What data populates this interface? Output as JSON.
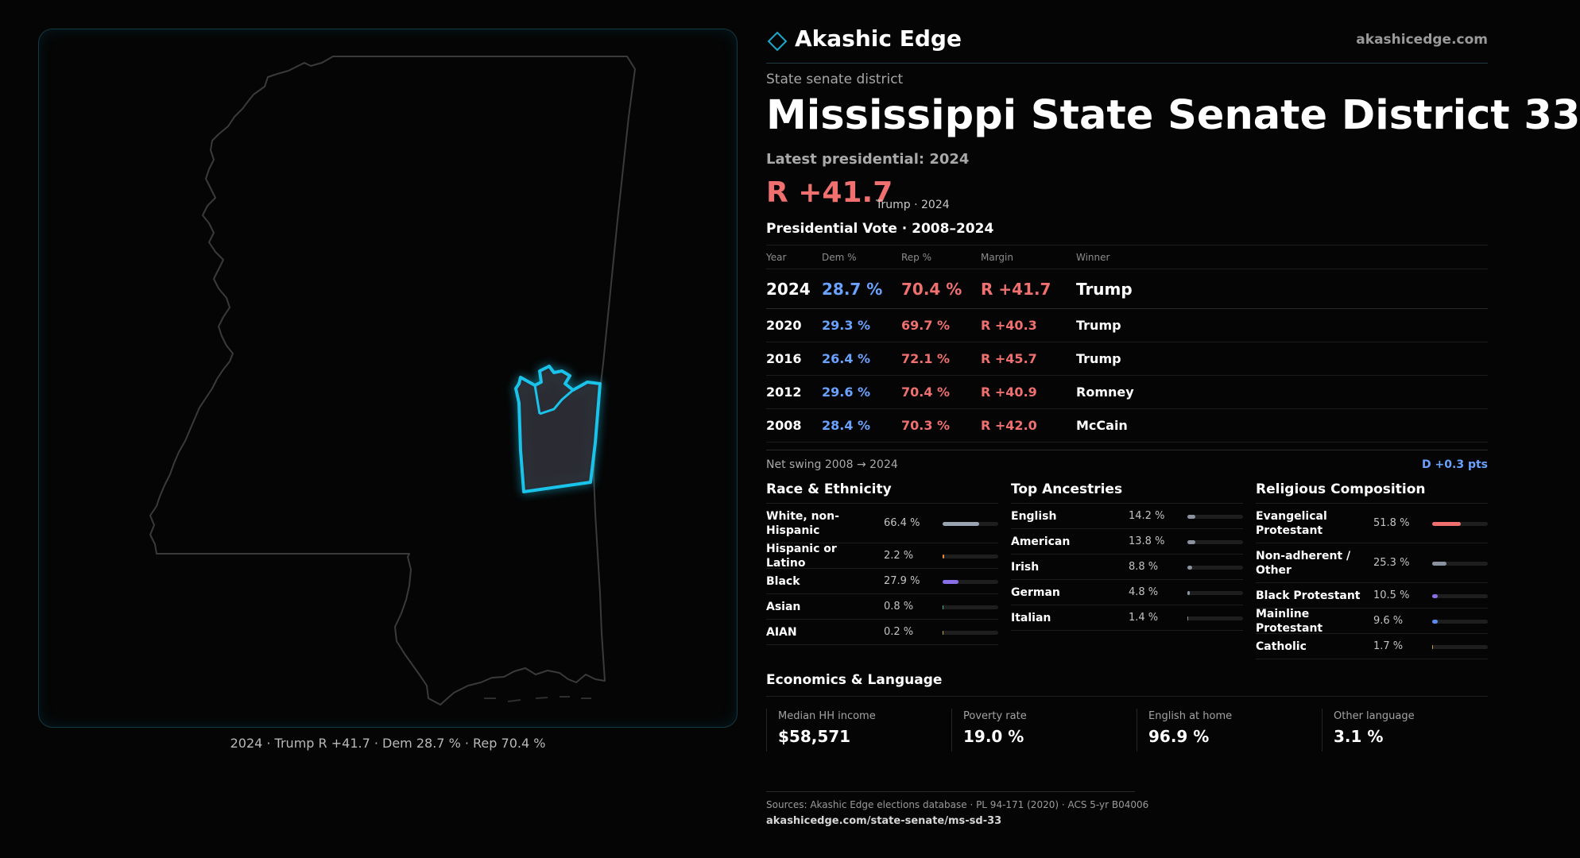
{
  "header": {
    "brand": "Akashic Edge",
    "site": "akashicedge.com"
  },
  "kicker": "State senate district",
  "title": "Mississippi State Senate District 33",
  "latest_label": "Latest presidential: 2024",
  "headline": {
    "margin": "R +41.7",
    "sub": "Trump · 2024"
  },
  "map": {
    "caption": "2024 · Trump R +41.7 · Dem 28.7 % · Rep 70.4 %",
    "highlight_color": "#19c3ea",
    "state_outline_color": "#3a3a3a"
  },
  "presidential": {
    "heading": "Presidential Vote · 2008–2024",
    "columns": [
      "Year",
      "Dem %",
      "Rep %",
      "Margin",
      "Winner"
    ],
    "rows": [
      {
        "year": "2024",
        "dem": "28.7 %",
        "rep": "70.4 %",
        "margin": "R +41.7",
        "winner": "Trump"
      },
      {
        "year": "2020",
        "dem": "29.3 %",
        "rep": "69.7 %",
        "margin": "R +40.3",
        "winner": "Trump"
      },
      {
        "year": "2016",
        "dem": "26.4 %",
        "rep": "72.1 %",
        "margin": "R +45.7",
        "winner": "Trump"
      },
      {
        "year": "2012",
        "dem": "29.6 %",
        "rep": "70.4 %",
        "margin": "R +40.9",
        "winner": "Romney"
      },
      {
        "year": "2008",
        "dem": "28.4 %",
        "rep": "70.3 %",
        "margin": "R +42.0",
        "winner": "McCain"
      }
    ],
    "swing_label": "Net swing 2008 → 2024",
    "swing_value": "D +0.3 pts"
  },
  "race": {
    "heading": "Race & Ethnicity",
    "rows": [
      {
        "label": "White, non-Hispanic",
        "value": "66.4 %",
        "pct": 66.4,
        "color": "#9aa3b0"
      },
      {
        "label": "Hispanic or Latino",
        "value": "2.2 %",
        "pct": 2.2,
        "color": "#e88a3a"
      },
      {
        "label": "Black",
        "value": "27.9 %",
        "pct": 27.9,
        "color": "#8a6ee8"
      },
      {
        "label": "Asian",
        "value": "0.8 %",
        "pct": 0.8,
        "color": "#3fbf7f"
      },
      {
        "label": "AIAN",
        "value": "0.2 %",
        "pct": 0.2,
        "color": "#c8a040"
      }
    ]
  },
  "ancestry": {
    "heading": "Top Ancestries",
    "rows": [
      {
        "label": "English",
        "value": "14.2 %",
        "pct": 14.2,
        "color": "#8c93a0"
      },
      {
        "label": "American",
        "value": "13.8 %",
        "pct": 13.8,
        "color": "#8c93a0"
      },
      {
        "label": "Irish",
        "value": "8.8 %",
        "pct": 8.8,
        "color": "#8c93a0"
      },
      {
        "label": "German",
        "value": "4.8 %",
        "pct": 4.8,
        "color": "#8c93a0"
      },
      {
        "label": "Italian",
        "value": "1.4 %",
        "pct": 1.4,
        "color": "#8c93a0"
      }
    ]
  },
  "religion": {
    "heading": "Religious Composition",
    "rows": [
      {
        "label": "Evangelical Protestant",
        "value": "51.8 %",
        "pct": 51.8,
        "color": "#f07070"
      },
      {
        "label": "Non-adherent / Other",
        "value": "25.3 %",
        "pct": 25.3,
        "color": "#8c93a0"
      },
      {
        "label": "Black Protestant",
        "value": "10.5 %",
        "pct": 10.5,
        "color": "#8a6ee8"
      },
      {
        "label": "Mainline Protestant",
        "value": "9.6 %",
        "pct": 9.6,
        "color": "#5a8af0"
      },
      {
        "label": "Catholic",
        "value": "1.7 %",
        "pct": 1.7,
        "color": "#c8a040"
      }
    ]
  },
  "economics": {
    "heading": "Economics & Language",
    "items": [
      {
        "label": "Median HH income",
        "value": "$58,571"
      },
      {
        "label": "Poverty rate",
        "value": "19.0 %"
      },
      {
        "label": "English at home",
        "value": "96.9 %"
      },
      {
        "label": "Other language",
        "value": "3.1 %"
      }
    ]
  },
  "footer": {
    "sources": "Sources: Akashic Edge elections database · PL 94-171 (2020) · ACS 5-yr B04006",
    "url": "akashicedge.com/state-senate/ms-sd-33"
  }
}
